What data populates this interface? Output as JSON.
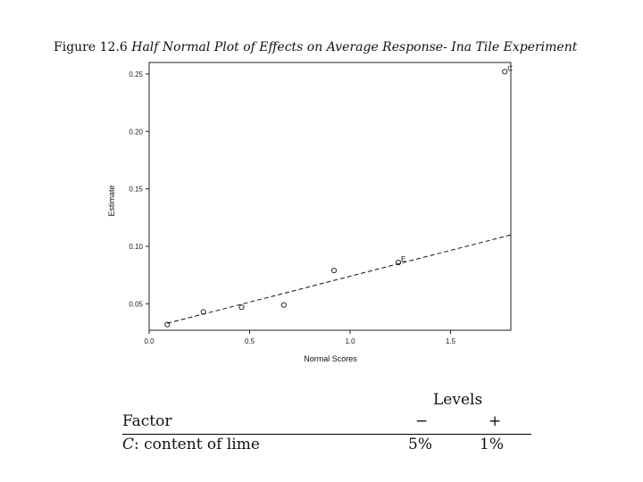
{
  "figure": {
    "title_lead": "Figure 12.6",
    "title_rest": "Half Normal Plot of Effects on Average Response- Ina Tile Experiment"
  },
  "chart_data": {
    "type": "scatter",
    "title": "",
    "xlabel": "Normal Scores",
    "ylabel": "Estimate",
    "xlim": [
      0.0,
      1.8
    ],
    "ylim": [
      0.027,
      0.26
    ],
    "x_ticks": [
      {
        "v": 0.0,
        "label": "0.0"
      },
      {
        "v": 0.5,
        "label": "0.5"
      },
      {
        "v": 1.0,
        "label": "1.0"
      },
      {
        "v": 1.5,
        "label": "1.5"
      }
    ],
    "y_ticks": [
      {
        "v": 0.05,
        "label": "0.05"
      },
      {
        "v": 0.1,
        "label": "0.10"
      },
      {
        "v": 0.15,
        "label": "0.15"
      },
      {
        "v": 0.2,
        "label": "0.20"
      },
      {
        "v": 0.25,
        "label": "0.25"
      }
    ],
    "points": [
      {
        "x": 0.09,
        "y": 0.032,
        "label": ""
      },
      {
        "x": 0.27,
        "y": 0.043,
        "label": ""
      },
      {
        "x": 0.46,
        "y": 0.047,
        "label": ""
      },
      {
        "x": 0.67,
        "y": 0.049,
        "label": ""
      },
      {
        "x": 0.92,
        "y": 0.079,
        "label": ""
      },
      {
        "x": 1.24,
        "y": 0.086,
        "label": "E"
      },
      {
        "x": 1.77,
        "y": 0.252,
        "label": "C"
      }
    ],
    "reference_line": {
      "x": [
        0.09,
        1.8
      ],
      "y": [
        0.033,
        0.11
      ]
    },
    "grid": false,
    "legend": "none"
  },
  "table": {
    "group_header": "Levels",
    "columns": [
      "Factor",
      "−",
      "+"
    ],
    "rows": [
      {
        "factor_letter": "C",
        "factor_desc": ": content of lime",
        "minus": "5%",
        "plus": "1%"
      }
    ]
  }
}
